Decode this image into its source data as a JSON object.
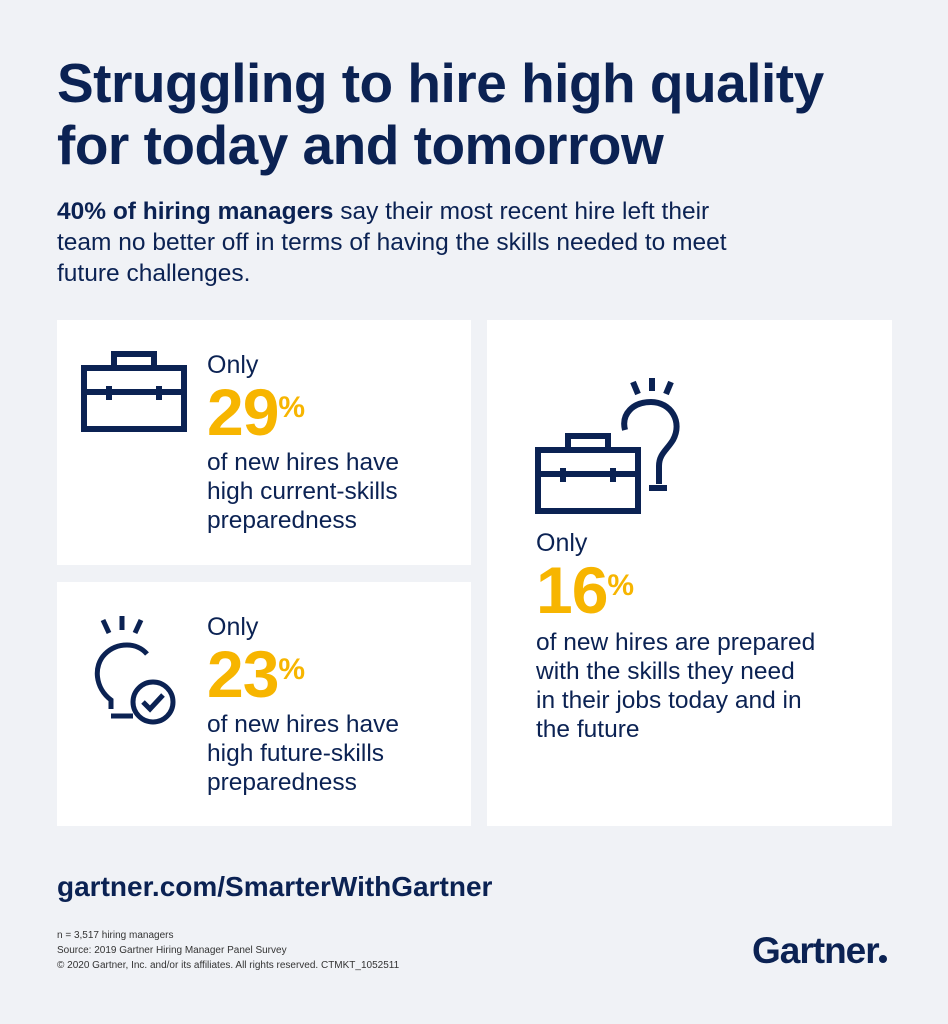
{
  "header": {
    "title_lines": [
      "Struggling to hire high quality",
      "for today and tomorrow"
    ],
    "intro_bold": "40% of hiring managers",
    "intro_lines": [
      " say their most recent hire left their",
      "team no better off in terms of having the skills needed to meet",
      "future challenges."
    ]
  },
  "cards": [
    {
      "prefix": "Only",
      "number": "29",
      "unit": "%",
      "lines": [
        "of new hires have",
        "high current-skills",
        "preparedness"
      ]
    },
    {
      "prefix": "Only",
      "number": "23",
      "unit": "%",
      "lines": [
        "of new hires have",
        "high future-skills",
        "preparedness"
      ]
    },
    {
      "prefix": "Only",
      "number": "16",
      "unit": "%",
      "lines": [
        "of new hires are prepared",
        "with the skills they need",
        "in their jobs today and in",
        "the future"
      ]
    }
  ],
  "footer": {
    "url": "gartner.com/SmarterWithGartner",
    "notes": [
      "n = 3,517 hiring managers",
      "Source: 2019 Gartner Hiring Manager Panel Survey",
      "© 2020 Gartner, Inc. and/or its affiliates. All rights reserved. CTMKT_1052511"
    ],
    "logo": "Gartner"
  }
}
